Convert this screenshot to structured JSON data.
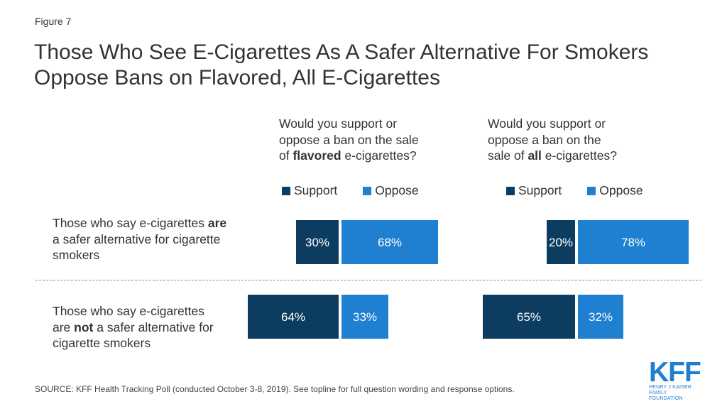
{
  "figure_label": "Figure 7",
  "title": "Those Who See E-Cigarettes As A Safer Alternative For Smokers Oppose Bans on Flavored, All E-Cigarettes",
  "questions": [
    {
      "line1": "Would you support or",
      "line2": "oppose a ban on the sale",
      "line3_pre": "of ",
      "line3_bold": "flavored",
      "line3_post": " e-cigarettes?"
    },
    {
      "line1": "Would you support or",
      "line2": "oppose a ban on the",
      "line3_pre": "sale of ",
      "line3_bold": "all",
      "line3_post": " e-cigarettes?"
    }
  ],
  "legend": {
    "support": "Support",
    "oppose": "Oppose"
  },
  "rows": [
    {
      "line1_pre": "Those who say e-cigarettes ",
      "line1_bold": "are",
      "line2": "a safer alternative for cigarette",
      "line3": "smokers"
    },
    {
      "line1": "Those who say e-cigarettes",
      "line2_pre": "are ",
      "line2_bold": "not",
      "line2_post": " a safer alternative for",
      "line3": "cigarette smokers"
    }
  ],
  "colors": {
    "support": "#0c3c60",
    "oppose": "#1f7fd0"
  },
  "chart_data": [
    {
      "type": "bar",
      "title": "Would you support or oppose a ban on the sale of flavored e-cigarettes?",
      "categories": [
        "Those who say e-cigarettes are a safer alternative for cigarette smokers",
        "Those who say e-cigarettes are not a safer alternative for cigarette smokers"
      ],
      "series": [
        {
          "name": "Support",
          "values": [
            30,
            64
          ]
        },
        {
          "name": "Oppose",
          "values": [
            68,
            33
          ]
        }
      ],
      "labels": [
        [
          "30%",
          "68%"
        ],
        [
          "64%",
          "33%"
        ]
      ]
    },
    {
      "type": "bar",
      "title": "Would you support or oppose a ban on the sale of all e-cigarettes?",
      "categories": [
        "Those who say e-cigarettes are a safer alternative for cigarette smokers",
        "Those who say e-cigarettes are not a safer alternative for cigarette smokers"
      ],
      "series": [
        {
          "name": "Support",
          "values": [
            20,
            65
          ]
        },
        {
          "name": "Oppose",
          "values": [
            78,
            32
          ]
        }
      ],
      "labels": [
        [
          "20%",
          "78%"
        ],
        [
          "65%",
          "32%"
        ]
      ]
    }
  ],
  "source": "SOURCE: KFF Health Tracking Poll (conducted October 3-8, 2019). See topline for full question wording and response options.",
  "logo": {
    "main": "KFF",
    "line1": "HENRY J KAISER",
    "line2": "FAMILY FOUNDATION"
  }
}
